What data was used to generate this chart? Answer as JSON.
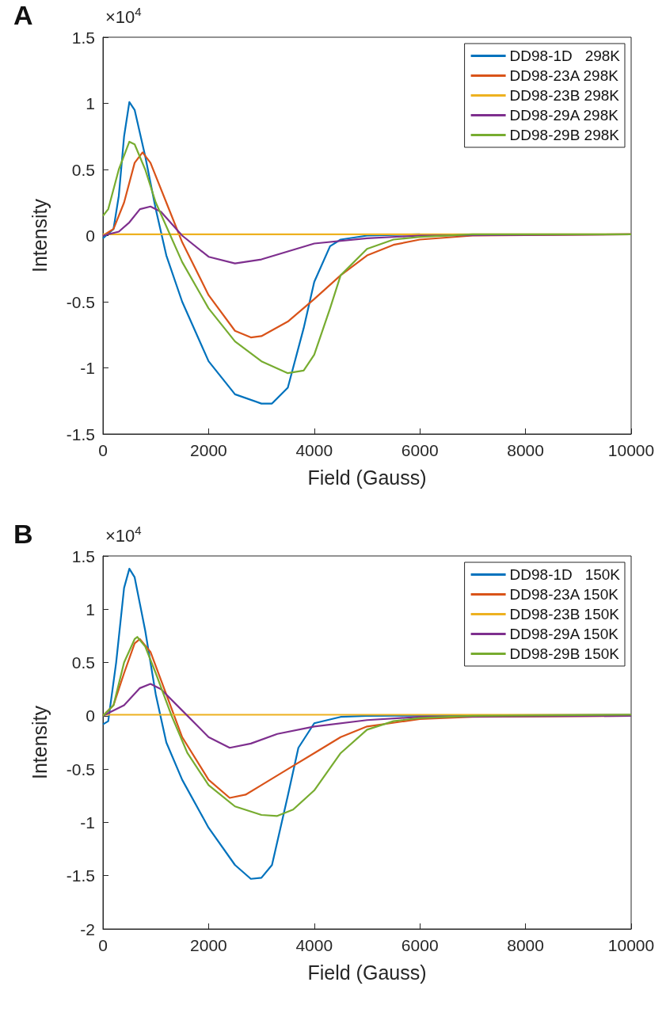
{
  "chart_data": [
    {
      "type": "line",
      "title": "A",
      "xlabel": "Field (Gauss)",
      "ylabel": "Intensity",
      "annotations": [
        "×10$^{4}$"
      ],
      "xlim": [
        0,
        10000
      ],
      "xticks": [
        0,
        2000,
        4000,
        6000,
        8000,
        10000
      ],
      "ylim": [
        -1.5,
        1.5
      ],
      "yticks": [
        -1.5,
        -1,
        -0.5,
        0,
        0.5,
        1,
        1.5
      ],
      "grid": false,
      "legend": "top right",
      "marker": "none",
      "line_style": "solid",
      "series": [
        {
          "name": "DD98-1D   298K",
          "color": "#0072bd",
          "x": [
            0,
            200,
            300,
            400,
            500,
            600,
            800,
            1000,
            1200,
            1500,
            2000,
            2500,
            3000,
            3200,
            3500,
            3800,
            4000,
            4300,
            4500,
            5000,
            6000
          ],
          "values": [
            -0.02,
            0.05,
            0.3,
            0.75,
            1.01,
            0.95,
            0.6,
            0.2,
            -0.15,
            -0.5,
            -0.95,
            -1.2,
            -1.27,
            -1.27,
            -1.15,
            -0.7,
            -0.35,
            -0.08,
            -0.03,
            0,
            0.01
          ]
        },
        {
          "name": "DD98-23A 298K",
          "color": "#d95319",
          "x": [
            0,
            200,
            400,
            600,
            750,
            900,
            1200,
            1500,
            2000,
            2500,
            2800,
            3000,
            3500,
            4000,
            4500,
            5000,
            5500,
            6000,
            7000,
            10000
          ],
          "values": [
            0,
            0.05,
            0.25,
            0.55,
            0.63,
            0.55,
            0.25,
            -0.05,
            -0.45,
            -0.72,
            -0.77,
            -0.76,
            -0.65,
            -0.48,
            -0.3,
            -0.15,
            -0.07,
            -0.03,
            0,
            0.01
          ]
        },
        {
          "name": "DD98-23B 298K",
          "color": "#edb120",
          "x": [
            0,
            10000
          ],
          "values": [
            0.01,
            0.01
          ]
        },
        {
          "name": "DD98-29A 298K",
          "color": "#7e2f8e",
          "x": [
            0,
            300,
            500,
            700,
            900,
            1100,
            1500,
            2000,
            2500,
            3000,
            3500,
            4000,
            5000,
            6000,
            10000
          ],
          "values": [
            0,
            0.03,
            0.1,
            0.2,
            0.22,
            0.18,
            0,
            -0.16,
            -0.21,
            -0.18,
            -0.12,
            -0.06,
            -0.02,
            0,
            0.01
          ]
        },
        {
          "name": "DD98-29B 298K",
          "color": "#77ac30",
          "x": [
            0,
            100,
            300,
            500,
            600,
            800,
            1000,
            1500,
            2000,
            2500,
            3000,
            3500,
            3800,
            4000,
            4300,
            4500,
            5000,
            5500,
            6000,
            7000,
            10000
          ],
          "values": [
            0.15,
            0.2,
            0.5,
            0.71,
            0.69,
            0.5,
            0.25,
            -0.2,
            -0.55,
            -0.8,
            -0.95,
            -1.04,
            -1.02,
            -0.9,
            -0.55,
            -0.3,
            -0.1,
            -0.03,
            -0.01,
            0.01,
            0.01
          ]
        }
      ]
    },
    {
      "type": "line",
      "title": "B",
      "xlabel": "Field (Gauss)",
      "ylabel": "Intensity",
      "annotations": [
        "×10$^{4}$"
      ],
      "xlim": [
        0,
        10000
      ],
      "xticks": [
        0,
        2000,
        4000,
        6000,
        8000,
        10000
      ],
      "ylim": [
        -2,
        1.5
      ],
      "yticks": [
        -2,
        -1.5,
        -1,
        -0.5,
        0,
        0.5,
        1,
        1.5
      ],
      "grid": false,
      "legend": "top right",
      "marker": "none",
      "line_style": "solid",
      "series": [
        {
          "name": "DD98-1D   150K",
          "color": "#0072bd",
          "x": [
            0,
            100,
            250,
            400,
            500,
            600,
            800,
            1000,
            1200,
            1500,
            2000,
            2500,
            2800,
            3000,
            3200,
            3500,
            3700,
            4000,
            4500,
            5000,
            10000
          ],
          "values": [
            -0.08,
            -0.05,
            0.5,
            1.2,
            1.38,
            1.3,
            0.8,
            0.2,
            -0.25,
            -0.6,
            -1.05,
            -1.4,
            -1.53,
            -1.52,
            -1.4,
            -0.75,
            -0.3,
            -0.07,
            -0.01,
            0,
            0.01
          ]
        },
        {
          "name": "DD98-23A 150K",
          "color": "#d95319",
          "x": [
            0,
            200,
            400,
            600,
            700,
            900,
            1200,
            1500,
            2000,
            2400,
            2700,
            3000,
            3500,
            4000,
            4500,
            5000,
            6000,
            7000,
            10000
          ],
          "values": [
            0,
            0.1,
            0.4,
            0.68,
            0.72,
            0.6,
            0.2,
            -0.2,
            -0.6,
            -0.77,
            -0.74,
            -0.65,
            -0.5,
            -0.35,
            -0.2,
            -0.1,
            -0.03,
            -0.01,
            0
          ]
        },
        {
          "name": "DD98-23B 150K",
          "color": "#edb120",
          "x": [
            0,
            10000
          ],
          "values": [
            0.01,
            0.01
          ]
        },
        {
          "name": "DD98-29A 150K",
          "color": "#7e2f8e",
          "x": [
            0,
            400,
            700,
            900,
            1100,
            1500,
            2000,
            2400,
            2800,
            3300,
            4000,
            5000,
            6000,
            10000
          ],
          "values": [
            0,
            0.1,
            0.26,
            0.3,
            0.25,
            0.05,
            -0.2,
            -0.3,
            -0.26,
            -0.17,
            -0.1,
            -0.04,
            -0.01,
            0
          ]
        },
        {
          "name": "DD98-29B 150K",
          "color": "#77ac30",
          "x": [
            0,
            200,
            400,
            600,
            650,
            800,
            1000,
            1300,
            1600,
            2000,
            2500,
            3000,
            3300,
            3600,
            4000,
            4500,
            5000,
            5500,
            6000,
            7000,
            10000
          ],
          "values": [
            0,
            0.1,
            0.5,
            0.72,
            0.74,
            0.65,
            0.4,
            0,
            -0.35,
            -0.65,
            -0.85,
            -0.93,
            -0.94,
            -0.88,
            -0.7,
            -0.35,
            -0.13,
            -0.05,
            -0.02,
            0,
            0.01
          ]
        }
      ]
    }
  ]
}
